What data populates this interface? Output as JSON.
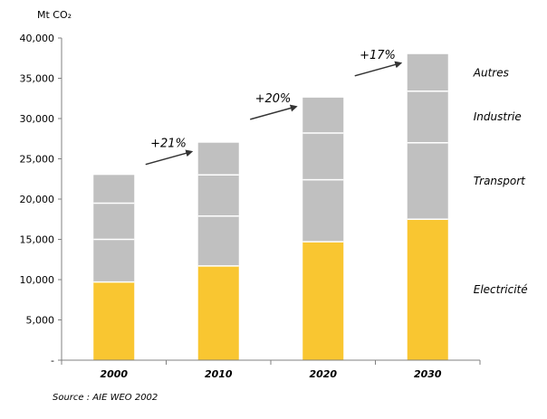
{
  "chart_data": {
    "type": "bar",
    "stacked": true,
    "unit_label": "Mt CO₂",
    "categories": [
      "2000",
      "2010",
      "2020",
      "2030"
    ],
    "ylim": [
      0,
      40000
    ],
    "y_ticks": [
      "-",
      "5,000",
      "10,000",
      "15,000",
      "20,000",
      "25,000",
      "30,000",
      "35,000",
      "40,000"
    ],
    "series": [
      {
        "name": "Electricité",
        "color": "#F9C631",
        "values": [
          9700,
          11700,
          14700,
          17500
        ]
      },
      {
        "name": "Transport",
        "color": "#C0C0C0",
        "values": [
          5300,
          6200,
          7700,
          9500
        ]
      },
      {
        "name": "Industrie",
        "color": "#C0C0C0",
        "values": [
          4500,
          5100,
          5800,
          6400
        ]
      },
      {
        "name": "Autres",
        "color": "#C0C0C0",
        "values": [
          3500,
          4000,
          4400,
          4600
        ]
      }
    ],
    "growth_annotations": [
      "+21%",
      "+20%",
      "+17%"
    ],
    "source": "Source : AIE WEO 2002"
  }
}
